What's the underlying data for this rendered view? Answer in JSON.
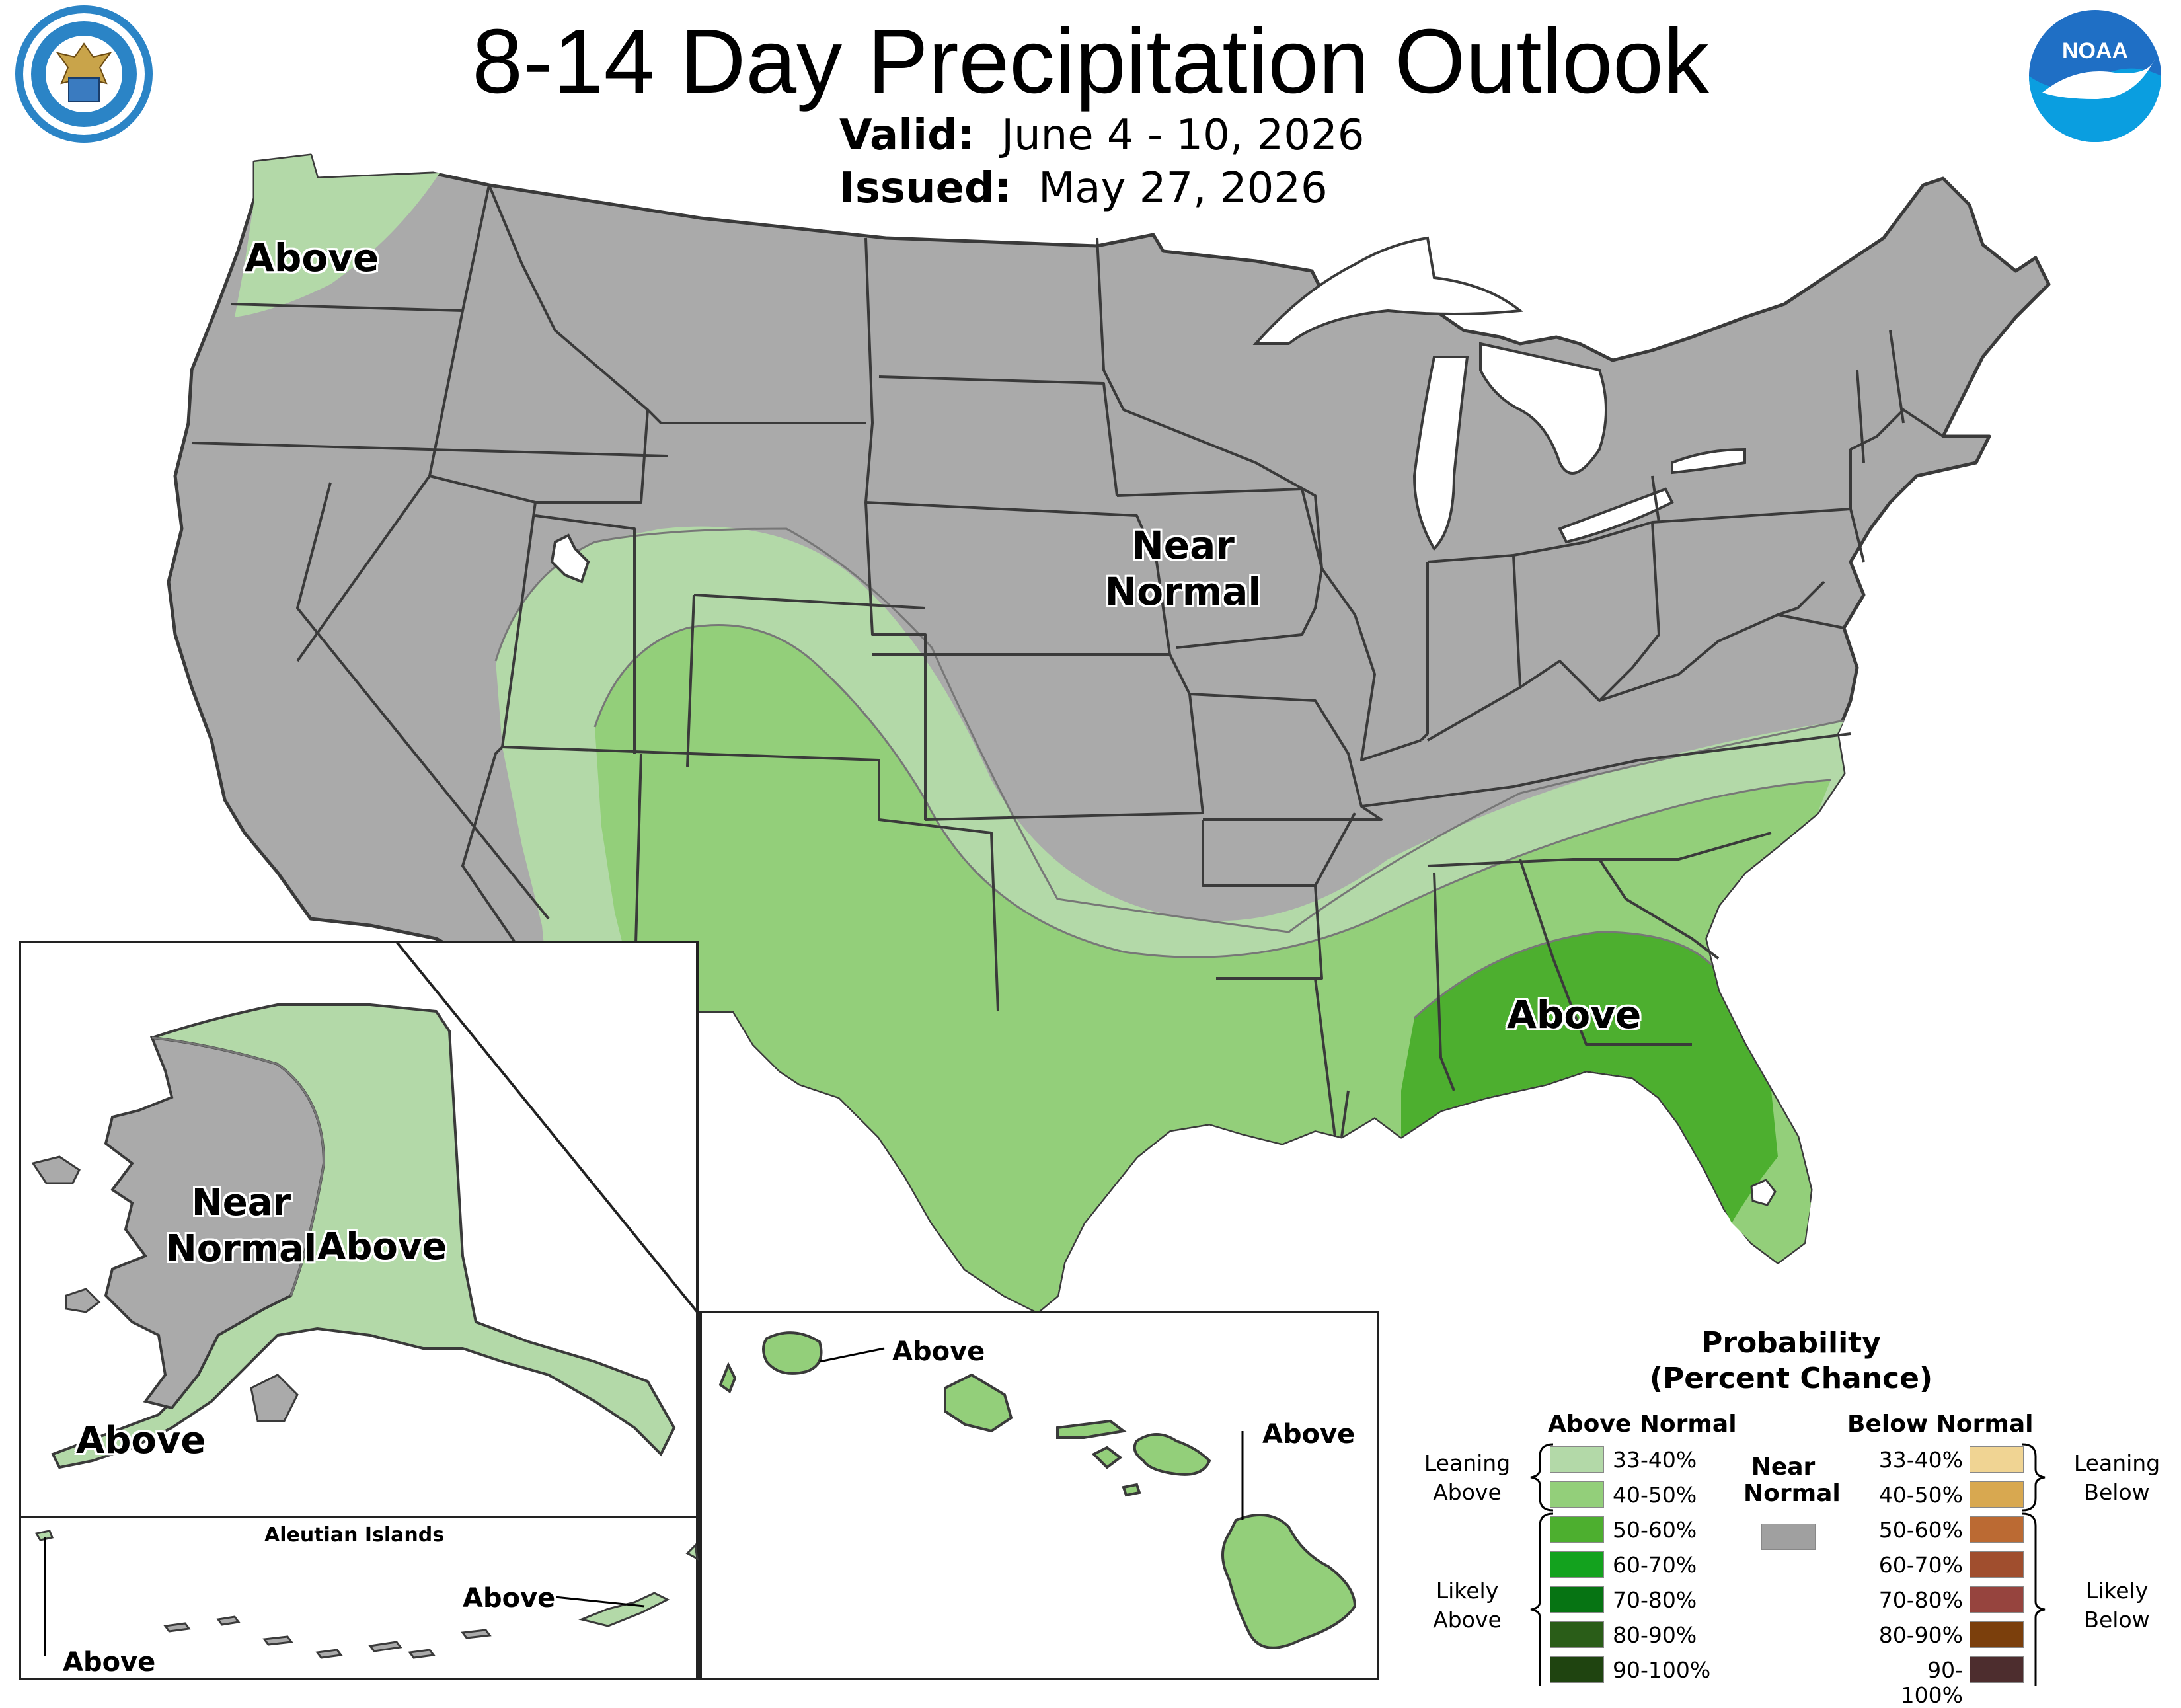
{
  "title": "8-14 Day Precipitation Outlook",
  "valid_label": "Valid:",
  "valid_value": "June 4 - 10, 2026",
  "issued_label": "Issued:",
  "issued_value": "May 27, 2026",
  "logos": {
    "left": "department-of-commerce-seal",
    "right": "noaa-logo"
  },
  "colors": {
    "near_normal": "#aaaaaa",
    "above_33_40": "#b3d9a8",
    "above_40_50": "#93cf7a",
    "above_50_60": "#4daf2f",
    "above_60_70": "#13a21e",
    "above_70_80": "#067413",
    "above_80_90": "#2a5d18",
    "above_90_100": "#1f4410",
    "below_33_40": "#f0d493",
    "below_40_50": "#d8a850",
    "below_50_60": "#bb6a33",
    "below_60_70": "#a04e2e",
    "below_70_80": "#96443e",
    "below_80_90": "#7b3f0c",
    "below_90_100": "#4d2d2e",
    "state_border": "#3a3a3a",
    "water": "#ffffff"
  },
  "conus_labels": {
    "northwest": "Above",
    "central_line1": "Near",
    "central_line2": "Normal",
    "southeast": "Above"
  },
  "alaska_labels": {
    "west_line1": "Near",
    "west_line2": "Normal",
    "east": "Above",
    "south": "Above"
  },
  "aleutian": {
    "title": "Aleutian Islands",
    "label_east": "Above",
    "label_west": "Above"
  },
  "hawaii_labels": {
    "kauai": "Above",
    "big_island": "Above"
  },
  "legend": {
    "title_line1": "Probability",
    "title_line2": "(Percent Chance)",
    "above_header": "Above Normal",
    "below_header": "Below Normal",
    "near_header_line1": "Near",
    "near_header_line2": "Normal",
    "leaning_above_line1": "Leaning",
    "leaning_above_line2": "Above",
    "likely_above_line1": "Likely",
    "likely_above_line2": "Above",
    "leaning_below_line1": "Leaning",
    "leaning_below_line2": "Below",
    "likely_below_line1": "Likely",
    "likely_below_line2": "Below",
    "ranges": [
      "33-40%",
      "40-50%",
      "50-60%",
      "60-70%",
      "70-80%",
      "80-90%",
      "90-100%"
    ]
  }
}
